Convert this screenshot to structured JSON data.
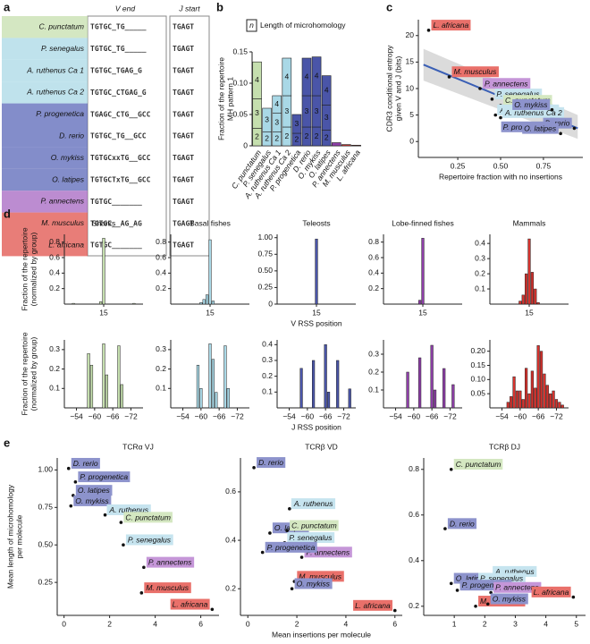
{
  "panel_a": {
    "label": "a",
    "headers": [
      "V end",
      "J start"
    ],
    "rows": [
      {
        "species": "C. punctatum",
        "v_end": "TGTGC_TG_____",
        "j_start": "TGAGT",
        "color": "#c5dfae"
      },
      {
        "species": "P. senegalus",
        "v_end": "TGTGC_TG_____",
        "j_start": "TGAGT",
        "color": "#a9d8e6"
      },
      {
        "species": "A. ruthenus Ca 1",
        "v_end": "TGTGC_TGAG_G",
        "j_start": "TGAGT",
        "color": "#a9d8e6"
      },
      {
        "species": "A. ruthenus Ca 2",
        "v_end": "TGTGC_CTGAG_G",
        "j_start": "TGAGT",
        "color": "#a9d8e6"
      },
      {
        "species": "P. progenetica",
        "v_end": "TGAGC_CTG__GCC",
        "j_start": "TGAGT",
        "color": "#5a67b8"
      },
      {
        "species": "D. rerio",
        "v_end": "TGTGC_TG__GCC",
        "j_start": "TGAGT",
        "color": "#5a67b8"
      },
      {
        "species": "O. mykiss",
        "v_end": "TGTGCxxTG__GCC",
        "j_start": "TGAGT",
        "color": "#5a67b8"
      },
      {
        "species": "O. latipes",
        "v_end": "TGTGCTxTG__GCC",
        "j_start": "TGAGT",
        "color": "#5a67b8"
      },
      {
        "species": "P. annectens",
        "v_end": "TGTGC_______",
        "j_start": "TGAGT",
        "color": "#a565c2"
      },
      {
        "species": "M. musculus",
        "v_end": "TGTGC__AG_AG",
        "j_start": "TGAGT",
        "color": "#e0514b"
      },
      {
        "species": "L. africana",
        "v_end": "TGTGC_______",
        "j_start": "TGAGT",
        "color": "#e0514b"
      }
    ]
  },
  "chart_data": [
    {
      "type": "bar",
      "label": "b",
      "legend_symbol": "n",
      "legend_title": "Length of microhomology",
      "y_label": [
        "Fraction of the repertoire",
        "MH pattern 1"
      ],
      "categories": [
        "C. punctatum",
        "P. senegalus",
        "A. ruthenus Ca 1",
        "A. ruthenus Ca 2",
        "P. progenetica",
        "D. rerio",
        "O. mykiss",
        "O. latipes",
        "P. annectens",
        "M. musculus",
        "L. africana"
      ],
      "colors": [
        "#c5dfae",
        "#a9d8e6",
        "#a9d8e6",
        "#a9d8e6",
        "#4a55a8",
        "#4a55a8",
        "#4a55a8",
        "#4a55a8",
        "#8e3fa8",
        "#d6322d",
        "#d6322d"
      ],
      "series": [
        {
          "name": "2",
          "values": [
            0.028,
            0.022,
            0.022,
            0.03,
            0.02,
            0.03,
            0.03,
            0.025,
            0.005,
            0.002,
            0.001
          ]
        },
        {
          "name": "3",
          "values": [
            0.047,
            0.038,
            0.03,
            0.05,
            0.03,
            0.05,
            0.05,
            0.04,
            0,
            0,
            0
          ]
        },
        {
          "name": "4",
          "values": [
            0.059,
            0,
            0.028,
            0.06,
            0,
            0.06,
            0.062,
            0.047,
            0,
            0,
            0
          ]
        }
      ],
      "ylim": [
        0,
        0.15
      ],
      "yticks": [
        0,
        0.05,
        {
          "value": 0.1,
          "label": "0.10"
        },
        0.15
      ]
    },
    {
      "type": "scatter",
      "label": "c",
      "x_label": "Repertoire fraction with no insertions",
      "y_label": [
        "CDR3 conditional entropy",
        "given V and J (bits)"
      ],
      "labels": [
        "L. africana",
        "M. musculus",
        "P. annectens",
        "P. senegalus",
        "C. punctatum",
        "A. ruthenus Ca 1",
        "A. ruthenus Ca 2",
        "O. mykiss",
        "D. rerio",
        "P. progenetica",
        "O. latipes"
      ],
      "x": [
        0.08,
        0.2,
        0.38,
        0.45,
        0.5,
        0.47,
        0.5,
        0.8,
        0.93,
        0.82,
        0.85
      ],
      "y": [
        21,
        12.2,
        10,
        8,
        6.8,
        5,
        4.5,
        6,
        2.5,
        1.8,
        1.5
      ],
      "label_colors": [
        "#e9706a",
        "#e9706a",
        "#c596d8",
        "#c6e4ef",
        "#d4e7c1",
        "#c6e4ef",
        "#c6e4ef",
        "#8d93cc",
        "#8d93cc",
        "#8d93cc",
        "#8d93cc"
      ],
      "fit": {
        "x": [
          0.05,
          0.95
        ],
        "y": [
          14.5,
          2.5
        ],
        "ci_low": [
          11.5,
          0.5
        ],
        "ci_high": [
          17.5,
          5
        ],
        "color": "#3a5fb5"
      },
      "xlim": [
        0.02,
        0.98
      ],
      "xticks": [
        0.25,
        {
          "value": 0.5,
          "label": "0.50"
        },
        0.75
      ],
      "ylim": [
        -3,
        23
      ],
      "yticks": [
        0,
        5,
        10,
        15,
        20
      ]
    },
    {
      "type": "bar",
      "label": "d",
      "title": "Sharks",
      "y_label": [
        "Fraction of the repertoire",
        "(normalized by group)"
      ],
      "color": "#c5dfae",
      "x": [
        5,
        14,
        15,
        25
      ],
      "values": [
        0.01,
        0.03,
        0.85,
        0.01
      ],
      "xlim": [
        2,
        28
      ],
      "xticks": [
        15
      ],
      "ylim": [
        0,
        0.9
      ],
      "yticks": [
        0.2,
        0.4,
        0.6,
        0.8
      ]
    },
    {
      "type": "bar",
      "title": "Basal fishes",
      "color": "#a9d8e6",
      "x": [
        12,
        13,
        14,
        15,
        16
      ],
      "values": [
        0.02,
        0.06,
        0.12,
        0.83,
        0.04
      ],
      "xlim": [
        2,
        28
      ],
      "xticks": [
        15
      ],
      "ylim": [
        0,
        0.9
      ],
      "yticks": [
        0.2,
        0.4,
        0.6,
        0.8
      ]
    },
    {
      "type": "bar",
      "title": "Teleosts",
      "x_label": "V RSS position",
      "color": "#4a55a8",
      "x": [
        15
      ],
      "values": [
        0.98
      ],
      "xlim": [
        2,
        28
      ],
      "xticks": [
        15
      ],
      "ylim": [
        0,
        1.05
      ],
      "yticks": [
        0,
        0.25,
        {
          "value": 0.5,
          "label": "0.50"
        },
        0.75,
        {
          "value": 1,
          "label": "1.00"
        }
      ]
    },
    {
      "type": "bar",
      "title": "Lobe-finned fishes",
      "color": "#8e3fa8",
      "x": [
        14,
        15
      ],
      "values": [
        0.05,
        0.85
      ],
      "xlim": [
        2,
        28
      ],
      "xticks": [
        15
      ],
      "ylim": [
        0,
        0.9
      ],
      "yticks": [
        0.2,
        0.4,
        0.6,
        0.8
      ]
    },
    {
      "type": "bar",
      "title": "Mammals",
      "color": "#d6322d",
      "x": [
        12,
        13,
        14,
        15,
        16,
        17,
        18
      ],
      "values": [
        0.02,
        0.06,
        0.2,
        0.43,
        0.21,
        0.1,
        0.01
      ],
      "xlim": [
        2,
        28
      ],
      "xticks": [
        15
      ],
      "ylim": [
        0,
        0.46
      ],
      "yticks": [
        0.1,
        0.2,
        0.3,
        0.4
      ]
    },
    {
      "type": "bar",
      "y_label": [
        "Fraction of the repertoire",
        "(normalized by group)"
      ],
      "color": "#c5dfae",
      "x": [
        -58,
        -59,
        -63,
        -64,
        -68,
        -69
      ],
      "values": [
        0.28,
        0.22,
        0.33,
        0.17,
        0.32,
        0.12
      ],
      "xlim": [
        -50,
        -76
      ],
      "xticks": [
        {
          "value": -54,
          "label": "−54"
        },
        {
          "value": -60,
          "label": "−60"
        },
        {
          "value": -66,
          "label": "−66"
        },
        {
          "value": -72,
          "label": "−72"
        }
      ],
      "ylim": [
        0,
        0.35
      ],
      "yticks": [
        0.1,
        0.2,
        0.3
      ]
    },
    {
      "type": "bar",
      "color": "#a9d8e6",
      "x": [
        -59,
        -60,
        -63,
        -64,
        -65,
        -68,
        -69
      ],
      "values": [
        0.22,
        0.1,
        0.33,
        0.25,
        0.08,
        0.32,
        0.1
      ],
      "xlim": [
        -50,
        -76
      ],
      "xticks": [
        {
          "value": -54,
          "label": "−54"
        },
        {
          "value": -60,
          "label": "−60"
        },
        {
          "value": -66,
          "label": "−66"
        },
        {
          "value": -72,
          "label": "−72"
        }
      ],
      "ylim": [
        0,
        0.35
      ],
      "yticks": [
        0.1,
        0.2,
        0.3
      ]
    },
    {
      "type": "bar",
      "x_label": "J RSS position",
      "color": "#4a55a8",
      "x": [
        -58,
        -62,
        -66,
        -67,
        -70,
        -74
      ],
      "values": [
        0.25,
        0.3,
        0.4,
        0.1,
        0.3,
        0.12
      ],
      "xlim": [
        -50,
        -76
      ],
      "xticks": [
        {
          "value": -54,
          "label": "−54"
        },
        {
          "value": -60,
          "label": "−60"
        },
        {
          "value": -66,
          "label": "−66"
        },
        {
          "value": -72,
          "label": "−72"
        }
      ],
      "ylim": [
        0,
        0.43
      ],
      "yticks": [
        0.1,
        0.2,
        0.3,
        0.4
      ]
    },
    {
      "type": "bar",
      "color": "#8e3fa8",
      "x": [
        -58,
        -62,
        -66,
        -67,
        -70,
        -73
      ],
      "values": [
        0.2,
        0.28,
        0.35,
        0.1,
        0.22,
        0.13
      ],
      "xlim": [
        -50,
        -76
      ],
      "xticks": [
        {
          "value": -54,
          "label": "−54"
        },
        {
          "value": -60,
          "label": "−60"
        },
        {
          "value": -66,
          "label": "−66"
        },
        {
          "value": -72,
          "label": "−72"
        }
      ],
      "ylim": [
        0,
        0.38
      ],
      "yticks": [
        0.1,
        0.2,
        0.3
      ]
    },
    {
      "type": "bar",
      "color": "#d6322d",
      "x": [
        -56,
        -57,
        -58,
        -59,
        -60,
        -61,
        -62,
        -63,
        -64,
        -65,
        -66,
        -67,
        -68,
        -69,
        -70,
        -71,
        -72,
        -73,
        -74
      ],
      "values": [
        0.02,
        0.04,
        0.11,
        0.06,
        0.06,
        0.03,
        0.14,
        0.05,
        0.13,
        0.07,
        0.22,
        0.2,
        0.12,
        0.08,
        0.05,
        0.06,
        0.03,
        0.02,
        0.01
      ],
      "xlim": [
        -50,
        -76
      ],
      "xticks": [
        {
          "value": -54,
          "label": "−54"
        },
        {
          "value": -60,
          "label": "−60"
        },
        {
          "value": -66,
          "label": "−66"
        },
        {
          "value": -72,
          "label": "−72"
        }
      ],
      "ylim": [
        0,
        0.24
      ],
      "yticks": [
        0.05,
        {
          "value": 0.1,
          "label": "0.10"
        },
        0.15,
        {
          "value": 0.2,
          "label": "0.20"
        }
      ]
    },
    {
      "type": "scatter",
      "label": "e",
      "title": "TCRα VJ",
      "y_label": [
        "Mean length of microhomology",
        "per molecule"
      ],
      "labels": [
        "D. rerio",
        "P. progenetica",
        "O. latipes",
        "O. mykiss",
        "A. ruthenus",
        "C. punctatum",
        "P. senegalus",
        "P. annectens",
        "M. musculus",
        "L. africana"
      ],
      "x": [
        0.2,
        0.5,
        0.4,
        0.3,
        1.8,
        2.5,
        2.6,
        3.5,
        3.4,
        6.5
      ],
      "y": [
        1.01,
        0.92,
        0.83,
        0.76,
        0.7,
        0.65,
        0.5,
        0.35,
        0.18,
        0.07
      ],
      "label_colors": [
        "#8d93cc",
        "#8d93cc",
        "#8d93cc",
        "#8d93cc",
        "#c6e4ef",
        "#d4e7c1",
        "#c6e4ef",
        "#c596d8",
        "#e9706a",
        "#e9706a"
      ],
      "xlim": [
        -0.3,
        6.8
      ],
      "xticks": [
        0,
        2,
        4,
        6
      ],
      "ylim": [
        0.03,
        1.08
      ],
      "yticks": [
        0.25,
        {
          "value": 0.5,
          "label": "0.50"
        },
        0.75,
        {
          "value": 1,
          "label": "1.00"
        }
      ]
    },
    {
      "type": "scatter",
      "title": "TCRβ VD",
      "x_label": "Mean insertions per molecule",
      "labels": [
        "D. rerio",
        "A. ruthenus",
        "O. latipes",
        "C. punctatum",
        "P. senegalus",
        "P. annectens",
        "P. progenetica",
        "M. musculus",
        "O. mykiss",
        "L. africana"
      ],
      "x": [
        0.25,
        1.7,
        0.9,
        1.6,
        1.5,
        2.2,
        0.6,
        1.9,
        1.8,
        6
      ],
      "y": [
        0.7,
        0.53,
        0.43,
        0.44,
        0.39,
        0.33,
        0.35,
        0.23,
        0.2,
        0.11
      ],
      "label_colors": [
        "#8d93cc",
        "#c6e4ef",
        "#8d93cc",
        "#d4e7c1",
        "#c6e4ef",
        "#c596d8",
        "#8d93cc",
        "#e9706a",
        "#8d93cc",
        "#e9706a"
      ],
      "xlim": [
        -0.3,
        6.3
      ],
      "xticks": [
        0,
        2,
        4,
        6
      ],
      "ylim": [
        0.09,
        0.74
      ],
      "yticks": [
        0.2,
        0.4,
        0.6
      ]
    },
    {
      "type": "scatter",
      "title": "TCRβ DJ",
      "labels": [
        "C. punctatum",
        "D. rerio",
        "O. latipes",
        "A. ruthenus",
        "P. senegalus",
        "P. progenetica",
        "P. annectens",
        "M. musculus",
        "O. mykiss",
        "L. africana"
      ],
      "x": [
        0.9,
        0.7,
        0.9,
        2.2,
        1.7,
        1.1,
        2.2,
        1.7,
        2.1,
        4.9
      ],
      "y": [
        0.8,
        0.54,
        0.3,
        0.33,
        0.3,
        0.27,
        0.26,
        0.2,
        0.21,
        0.24
      ],
      "label_colors": [
        "#d4e7c1",
        "#8d93cc",
        "#8d93cc",
        "#c6e4ef",
        "#c6e4ef",
        "#8d93cc",
        "#c596d8",
        "#e9706a",
        "#8d93cc",
        "#e9706a"
      ],
      "xlim": [
        0,
        5.3
      ],
      "xticks": [
        1,
        2,
        3,
        4,
        5
      ],
      "ylim": [
        0.16,
        0.85
      ],
      "yticks": [
        0.2,
        0.4,
        0.6,
        0.8
      ]
    }
  ]
}
